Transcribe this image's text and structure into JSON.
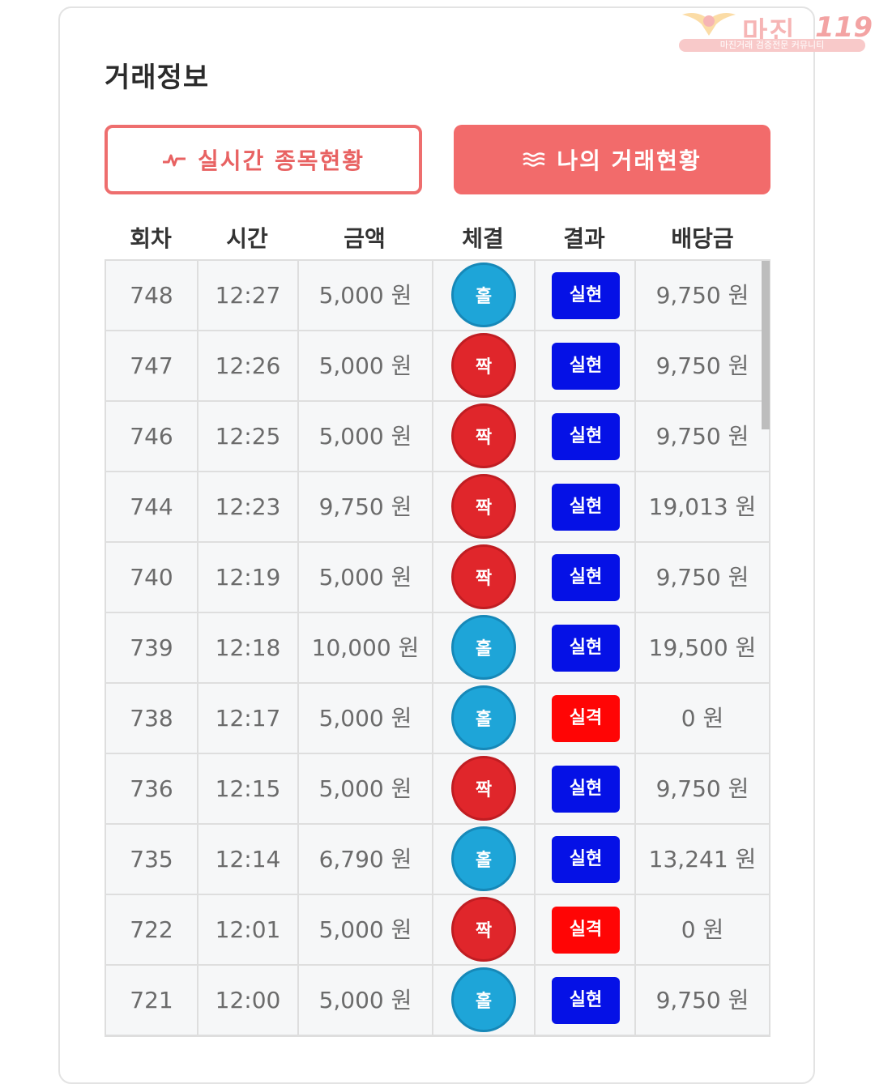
{
  "header": {
    "title": "거래정보"
  },
  "watermark": {
    "brand": "마진",
    "number": "119",
    "tagline": "마진거래 검증전문 커뮤니티"
  },
  "buttons": {
    "live": {
      "label": "실시간 종목현황",
      "icon": "pulse-icon"
    },
    "mine": {
      "label": "나의 거래현황",
      "icon": "waves-icon"
    }
  },
  "table": {
    "columns": [
      "회차",
      "시간",
      "금액",
      "체결",
      "결과",
      "배당금"
    ],
    "rows": [
      {
        "round": "748",
        "time": "12:27",
        "amount": "5,000 원",
        "execution": "홀",
        "result": "실현",
        "payout": "9,750 원"
      },
      {
        "round": "747",
        "time": "12:26",
        "amount": "5,000 원",
        "execution": "짝",
        "result": "실현",
        "payout": "9,750 원"
      },
      {
        "round": "746",
        "time": "12:25",
        "amount": "5,000 원",
        "execution": "짝",
        "result": "실현",
        "payout": "9,750 원"
      },
      {
        "round": "744",
        "time": "12:23",
        "amount": "9,750 원",
        "execution": "짝",
        "result": "실현",
        "payout": "19,013 원"
      },
      {
        "round": "740",
        "time": "12:19",
        "amount": "5,000 원",
        "execution": "짝",
        "result": "실현",
        "payout": "9,750 원"
      },
      {
        "round": "739",
        "time": "12:18",
        "amount": "10,000 원",
        "execution": "홀",
        "result": "실현",
        "payout": "19,500 원"
      },
      {
        "round": "738",
        "time": "12:17",
        "amount": "5,000 원",
        "execution": "홀",
        "result": "실격",
        "payout": "0 원"
      },
      {
        "round": "736",
        "time": "12:15",
        "amount": "5,000 원",
        "execution": "짝",
        "result": "실현",
        "payout": "9,750 원"
      },
      {
        "round": "735",
        "time": "12:14",
        "amount": "6,790 원",
        "execution": "홀",
        "result": "실현",
        "payout": "13,241 원"
      },
      {
        "round": "722",
        "time": "12:01",
        "amount": "5,000 원",
        "execution": "짝",
        "result": "실격",
        "payout": "0 원"
      },
      {
        "round": "721",
        "time": "12:00",
        "amount": "5,000 원",
        "execution": "홀",
        "result": "실현",
        "payout": "9,750 원"
      }
    ]
  },
  "colors": {
    "accent": "#f26b6b",
    "odd_ball": "#1ea5d8",
    "even_ball": "#e0262b",
    "win_badge": "#0511e6",
    "lose_badge": "#ff0505"
  }
}
